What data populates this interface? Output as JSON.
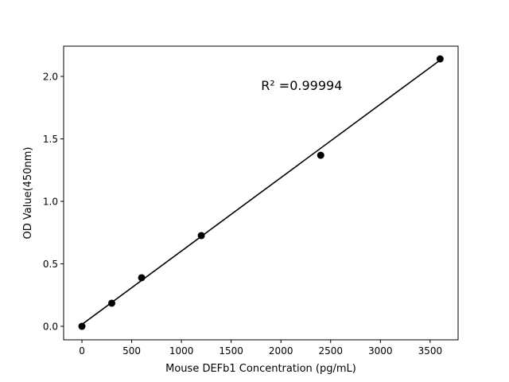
{
  "chart_data": {
    "type": "scatter",
    "title": "",
    "xlabel": "Mouse DEFb1 Concentration (pg/mL)",
    "ylabel": "OD Value(450nm)",
    "xlim": [
      -184,
      3781
    ],
    "ylim": [
      -0.108,
      2.242
    ],
    "xticks": [
      0,
      500,
      1000,
      1500,
      2000,
      2500,
      3000,
      3500
    ],
    "xtick_labels": [
      "0",
      "500",
      "1000",
      "1500",
      "2000",
      "2500",
      "3000",
      "3500"
    ],
    "yticks": [
      0.0,
      0.5,
      1.0,
      1.5,
      2.0
    ],
    "ytick_labels": [
      "0.0",
      "0.5",
      "1.0",
      "1.5",
      "2.0"
    ],
    "grid": false,
    "points": {
      "x": [
        0,
        300,
        600,
        1200,
        2400,
        3600
      ],
      "y": [
        0.0,
        0.185,
        0.389,
        0.726,
        1.369,
        2.14
      ]
    },
    "fit_line": {
      "x": [
        0,
        3600
      ],
      "y": [
        0.015,
        2.13
      ]
    },
    "annotation": {
      "text": "R² =0.99994",
      "x": 1800,
      "y": 1.93
    },
    "colors": {
      "points": "#000000",
      "line": "#000000"
    }
  }
}
